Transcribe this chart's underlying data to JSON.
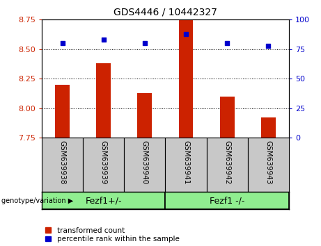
{
  "title": "GDS4446 / 10442327",
  "samples": [
    "GSM639938",
    "GSM639939",
    "GSM639940",
    "GSM639941",
    "GSM639942",
    "GSM639943"
  ],
  "transformed_counts": [
    8.2,
    8.38,
    8.13,
    8.75,
    8.1,
    7.92
  ],
  "percentile_ranks": [
    80,
    83,
    80,
    88,
    80,
    78
  ],
  "ylim_left": [
    7.75,
    8.75
  ],
  "ylim_right": [
    0,
    100
  ],
  "yticks_left": [
    7.75,
    8.0,
    8.25,
    8.5,
    8.75
  ],
  "yticks_right": [
    0,
    25,
    50,
    75,
    100
  ],
  "bar_color": "#cc2200",
  "scatter_color": "#0000cc",
  "group1_label": "Fezf1+/-",
  "group2_label": "Fezf1 -/-",
  "group1_indices": [
    0,
    1,
    2
  ],
  "group2_indices": [
    3,
    4,
    5
  ],
  "group_color": "#90ee90",
  "bg_color": "#ffffff",
  "tick_label_color_left": "#cc2200",
  "tick_label_color_right": "#0000cc",
  "legend_labels": [
    "transformed count",
    "percentile rank within the sample"
  ],
  "xticklabel_bg": "#c8c8c8",
  "title_fontsize": 10,
  "bar_width": 0.35
}
